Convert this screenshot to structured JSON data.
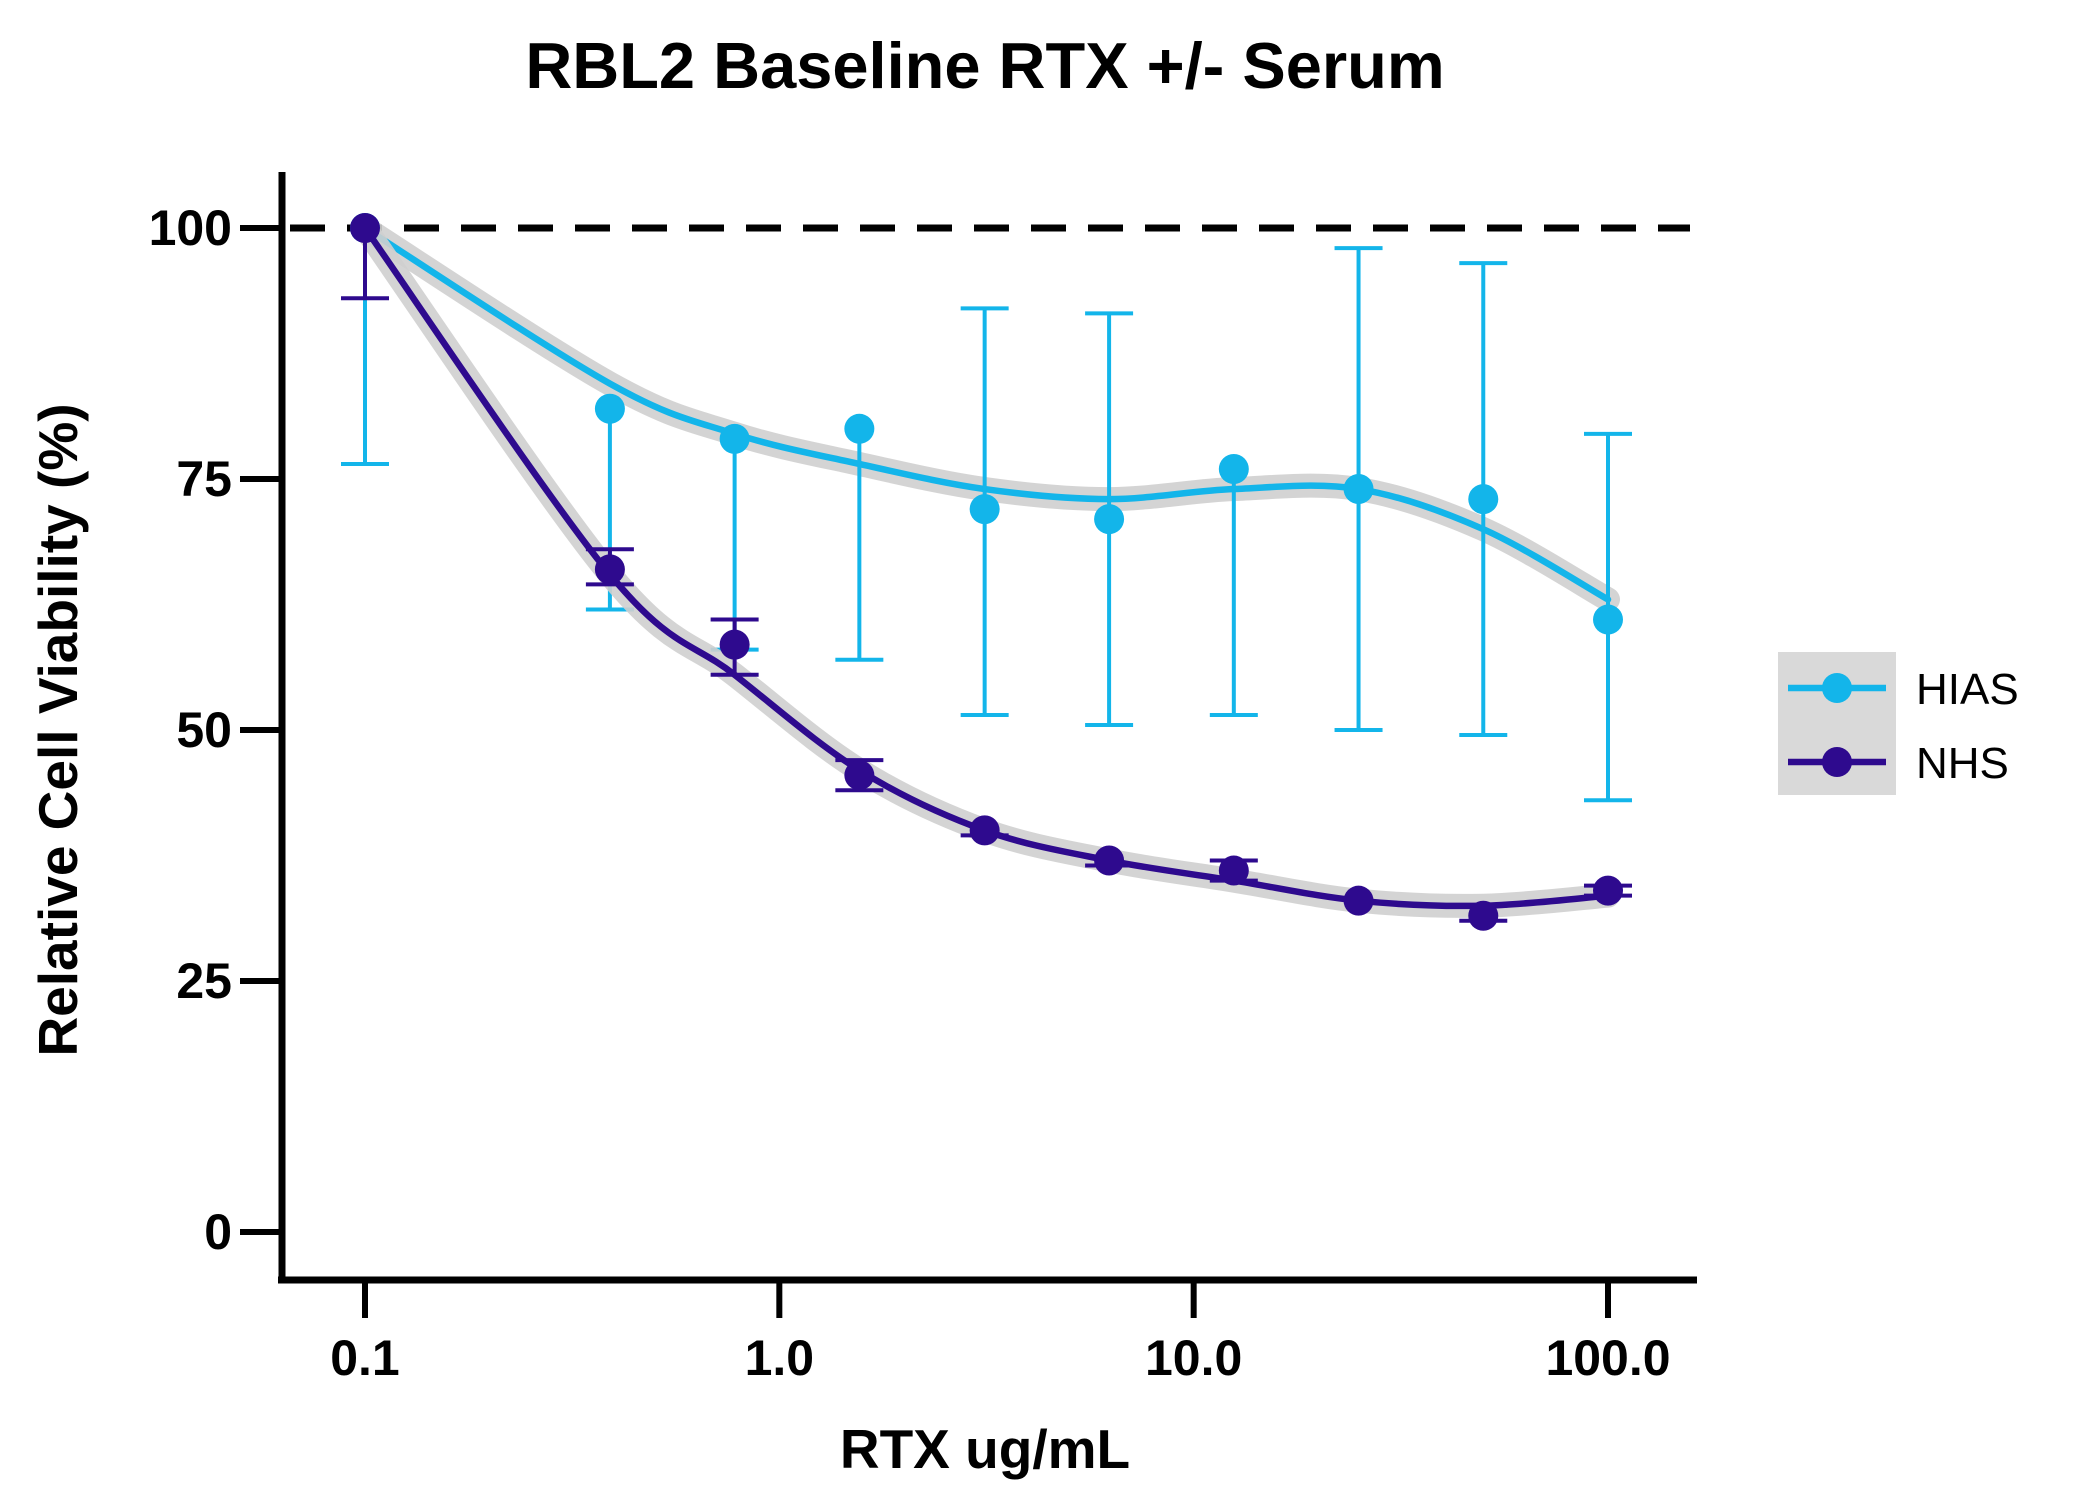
{
  "chart_data": {
    "type": "scatter",
    "title": "RBL2 Baseline RTX +/- Serum",
    "xlabel": "RTX ug/mL",
    "ylabel": "Relative Cell Viability (%)",
    "xscale": "log",
    "xlim": [
      0.08,
      160
    ],
    "ylim": [
      -5,
      105
    ],
    "xticks": [
      0.1,
      1.0,
      10.0,
      100.0
    ],
    "xtick_labels": [
      "0.1",
      "1.0",
      "10.0",
      "100.0"
    ],
    "yticks": [
      0,
      25,
      50,
      75,
      100
    ],
    "ytick_labels": [
      "0",
      "25",
      "50",
      "75",
      "100"
    ],
    "reference_line": {
      "y": 100,
      "style": "dashed",
      "color": "#000000"
    },
    "grid": false,
    "legend_position": "right",
    "x": [
      0.1,
      0.39,
      0.78,
      1.56,
      3.13,
      6.25,
      12.5,
      25,
      50,
      100
    ],
    "series": [
      {
        "name": "HIAS",
        "color": "#13B5EA",
        "values": [
          100,
          82,
          79,
          80,
          72,
          71,
          76,
          74,
          73,
          61
        ],
        "error_low": [
          76.5,
          62,
          58,
          57,
          51.5,
          50.5,
          51.5,
          50,
          49.5,
          43
        ],
        "error_high": [
          100,
          82,
          79,
          80,
          92,
          91.5,
          76,
          98,
          96.5,
          79.5
        ],
        "fit": [
          100,
          84.5,
          79.5,
          76.5,
          74,
          73,
          74,
          74,
          70,
          63
        ]
      },
      {
        "name": "NHS",
        "color": "#2E0A8E",
        "values": [
          100,
          66,
          58.5,
          45.5,
          40,
          37,
          36,
          33,
          31.5,
          34
        ],
        "error_low": [
          93,
          64.5,
          55.5,
          44,
          39.5,
          36.5,
          35,
          33,
          31,
          33.5
        ],
        "error_high": [
          100,
          68,
          61,
          47,
          40,
          37,
          37,
          33,
          32.5,
          34.5
        ],
        "fit": [
          100,
          65.5,
          55.5,
          46,
          40,
          37,
          35,
          33,
          32.5,
          33.5
        ]
      }
    ]
  }
}
